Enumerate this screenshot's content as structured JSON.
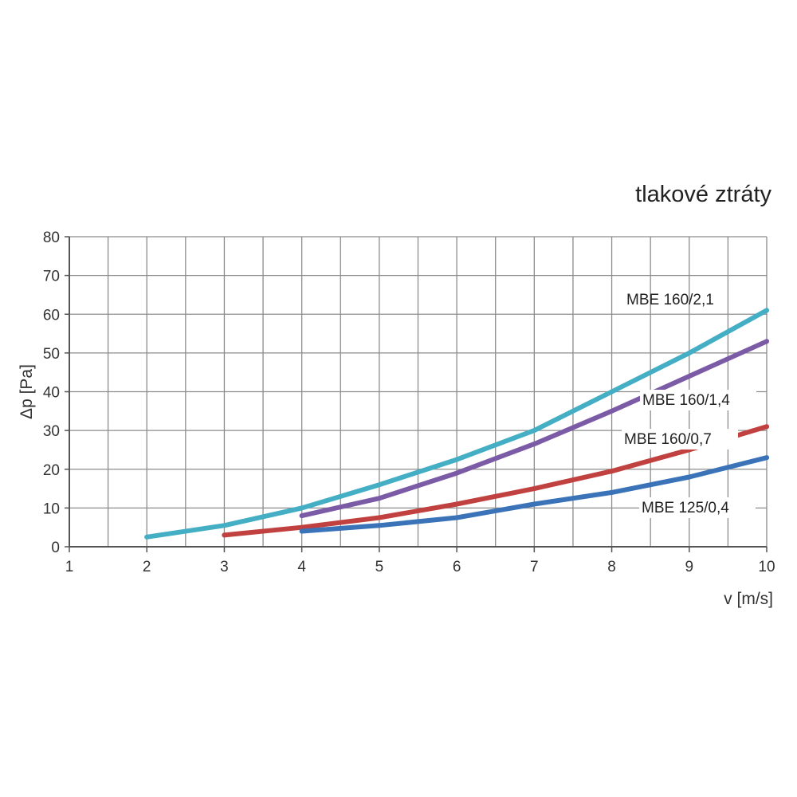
{
  "chart_data": {
    "type": "line",
    "title": "tlakové ztráty",
    "xlabel": "v [m/s]",
    "ylabel": "Δp [Pa]",
    "xlim": [
      1,
      10
    ],
    "ylim": [
      0,
      80
    ],
    "x_ticks": [
      "1",
      "2",
      "3",
      "4",
      "5",
      "6",
      "7",
      "8",
      "9",
      "10"
    ],
    "y_ticks": [
      "0",
      "10",
      "20",
      "30",
      "40",
      "50",
      "60",
      "70",
      "80"
    ],
    "grid": true,
    "series": [
      {
        "name": "MBE  160/2,1",
        "color": "#44aec4",
        "x": [
          2,
          3,
          4,
          5,
          6,
          7,
          8,
          9,
          10
        ],
        "y": [
          2.5,
          5.5,
          10,
          16,
          22.5,
          30,
          40,
          50,
          61
        ]
      },
      {
        "name": "MBE 160/1,4",
        "color": "#7b5aa6",
        "x": [
          4,
          5,
          6,
          7,
          8,
          9,
          10
        ],
        "y": [
          8,
          12.5,
          19,
          26.5,
          35,
          44,
          53
        ]
      },
      {
        "name": "MBE 160/0,7",
        "color": "#c0413f",
        "x": [
          3,
          4,
          5,
          6,
          7,
          8,
          9,
          10
        ],
        "y": [
          3,
          5,
          7.5,
          11,
          15,
          19.5,
          25,
          31
        ]
      },
      {
        "name": "MBE 125/0,4",
        "color": "#3a73b8",
        "x": [
          4,
          5,
          6,
          7,
          8,
          9,
          10
        ],
        "y": [
          4,
          5.5,
          7.5,
          11,
          14,
          18,
          23
        ]
      }
    ]
  }
}
